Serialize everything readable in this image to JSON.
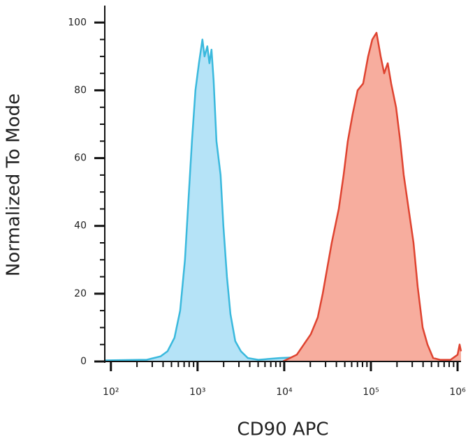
{
  "chart_data": {
    "type": "histogram-overlay",
    "x_label": "CD90 APC",
    "y_label": "Normalized To Mode",
    "xscale": "log",
    "xlim": [
      85,
      1096000
    ],
    "ylim": [
      0,
      105
    ],
    "xticks": [
      {
        "value": 100,
        "label": "10²"
      },
      {
        "value": 1000,
        "label": "10³"
      },
      {
        "value": 10000,
        "label": "10⁴"
      },
      {
        "value": 100000,
        "label": "10⁵"
      },
      {
        "value": 1000000,
        "label": "10⁶"
      }
    ],
    "xminorticks": [
      200,
      300,
      400,
      500,
      600,
      700,
      800,
      900,
      2000,
      3000,
      4000,
      5000,
      6000,
      7000,
      8000,
      9000,
      20000,
      30000,
      40000,
      50000,
      60000,
      70000,
      80000,
      90000,
      200000,
      300000,
      400000,
      500000,
      600000,
      700000,
      800000,
      900000
    ],
    "yticks": [
      0,
      20,
      40,
      60,
      80,
      100
    ],
    "yminorticks": [
      5,
      10,
      15,
      25,
      30,
      35,
      45,
      50,
      55,
      65,
      70,
      75,
      85,
      90,
      95
    ],
    "series": [
      {
        "color": "#3ab9dd",
        "fill": "#b5e3f7",
        "x": [
          85,
          214,
          258,
          374,
          450,
          542,
          629,
          716,
          786,
          861,
          946,
          1038,
          1139,
          1204,
          1297,
          1371,
          1449,
          1532,
          1651,
          1845,
          1986,
          2181,
          2393,
          2724,
          3162,
          3808,
          5032,
          8791,
          12744,
          18451,
          56234,
          1096000
        ],
        "values": [
          0.3,
          0.5,
          0.5,
          1.5,
          3,
          7,
          15,
          30,
          48,
          65,
          80,
          88,
          95,
          90,
          93,
          88,
          92,
          83,
          65,
          55,
          40,
          25,
          14,
          6,
          3,
          1,
          0.5,
          1,
          1.2,
          0.5,
          0.3,
          0.3
        ]
      },
      {
        "color": "#df4330",
        "fill": "#f7ad9e",
        "x": [
          9638,
          11614,
          13973,
          16814,
          20230,
          24378,
          27778,
          31046,
          35318,
          42560,
          48417,
          54169,
          61660,
          70307,
          81470,
          92897,
          103753,
          116143,
          129718,
          142233,
          156314,
          171396,
          195034,
          218117,
          239332,
          272270,
          310456,
          346737,
          395367,
          449780,
          522396,
          628058,
          829851,
          1000000,
          1057000,
          1096000
        ],
        "values": [
          0,
          1,
          2,
          5,
          8,
          13,
          20,
          27,
          35,
          45,
          55,
          65,
          73,
          80,
          82,
          90,
          95,
          97,
          90,
          85,
          88,
          82,
          75,
          65,
          55,
          45,
          35,
          22,
          10,
          5,
          1,
          0.5,
          0.5,
          2,
          5,
          3
        ]
      }
    ]
  }
}
